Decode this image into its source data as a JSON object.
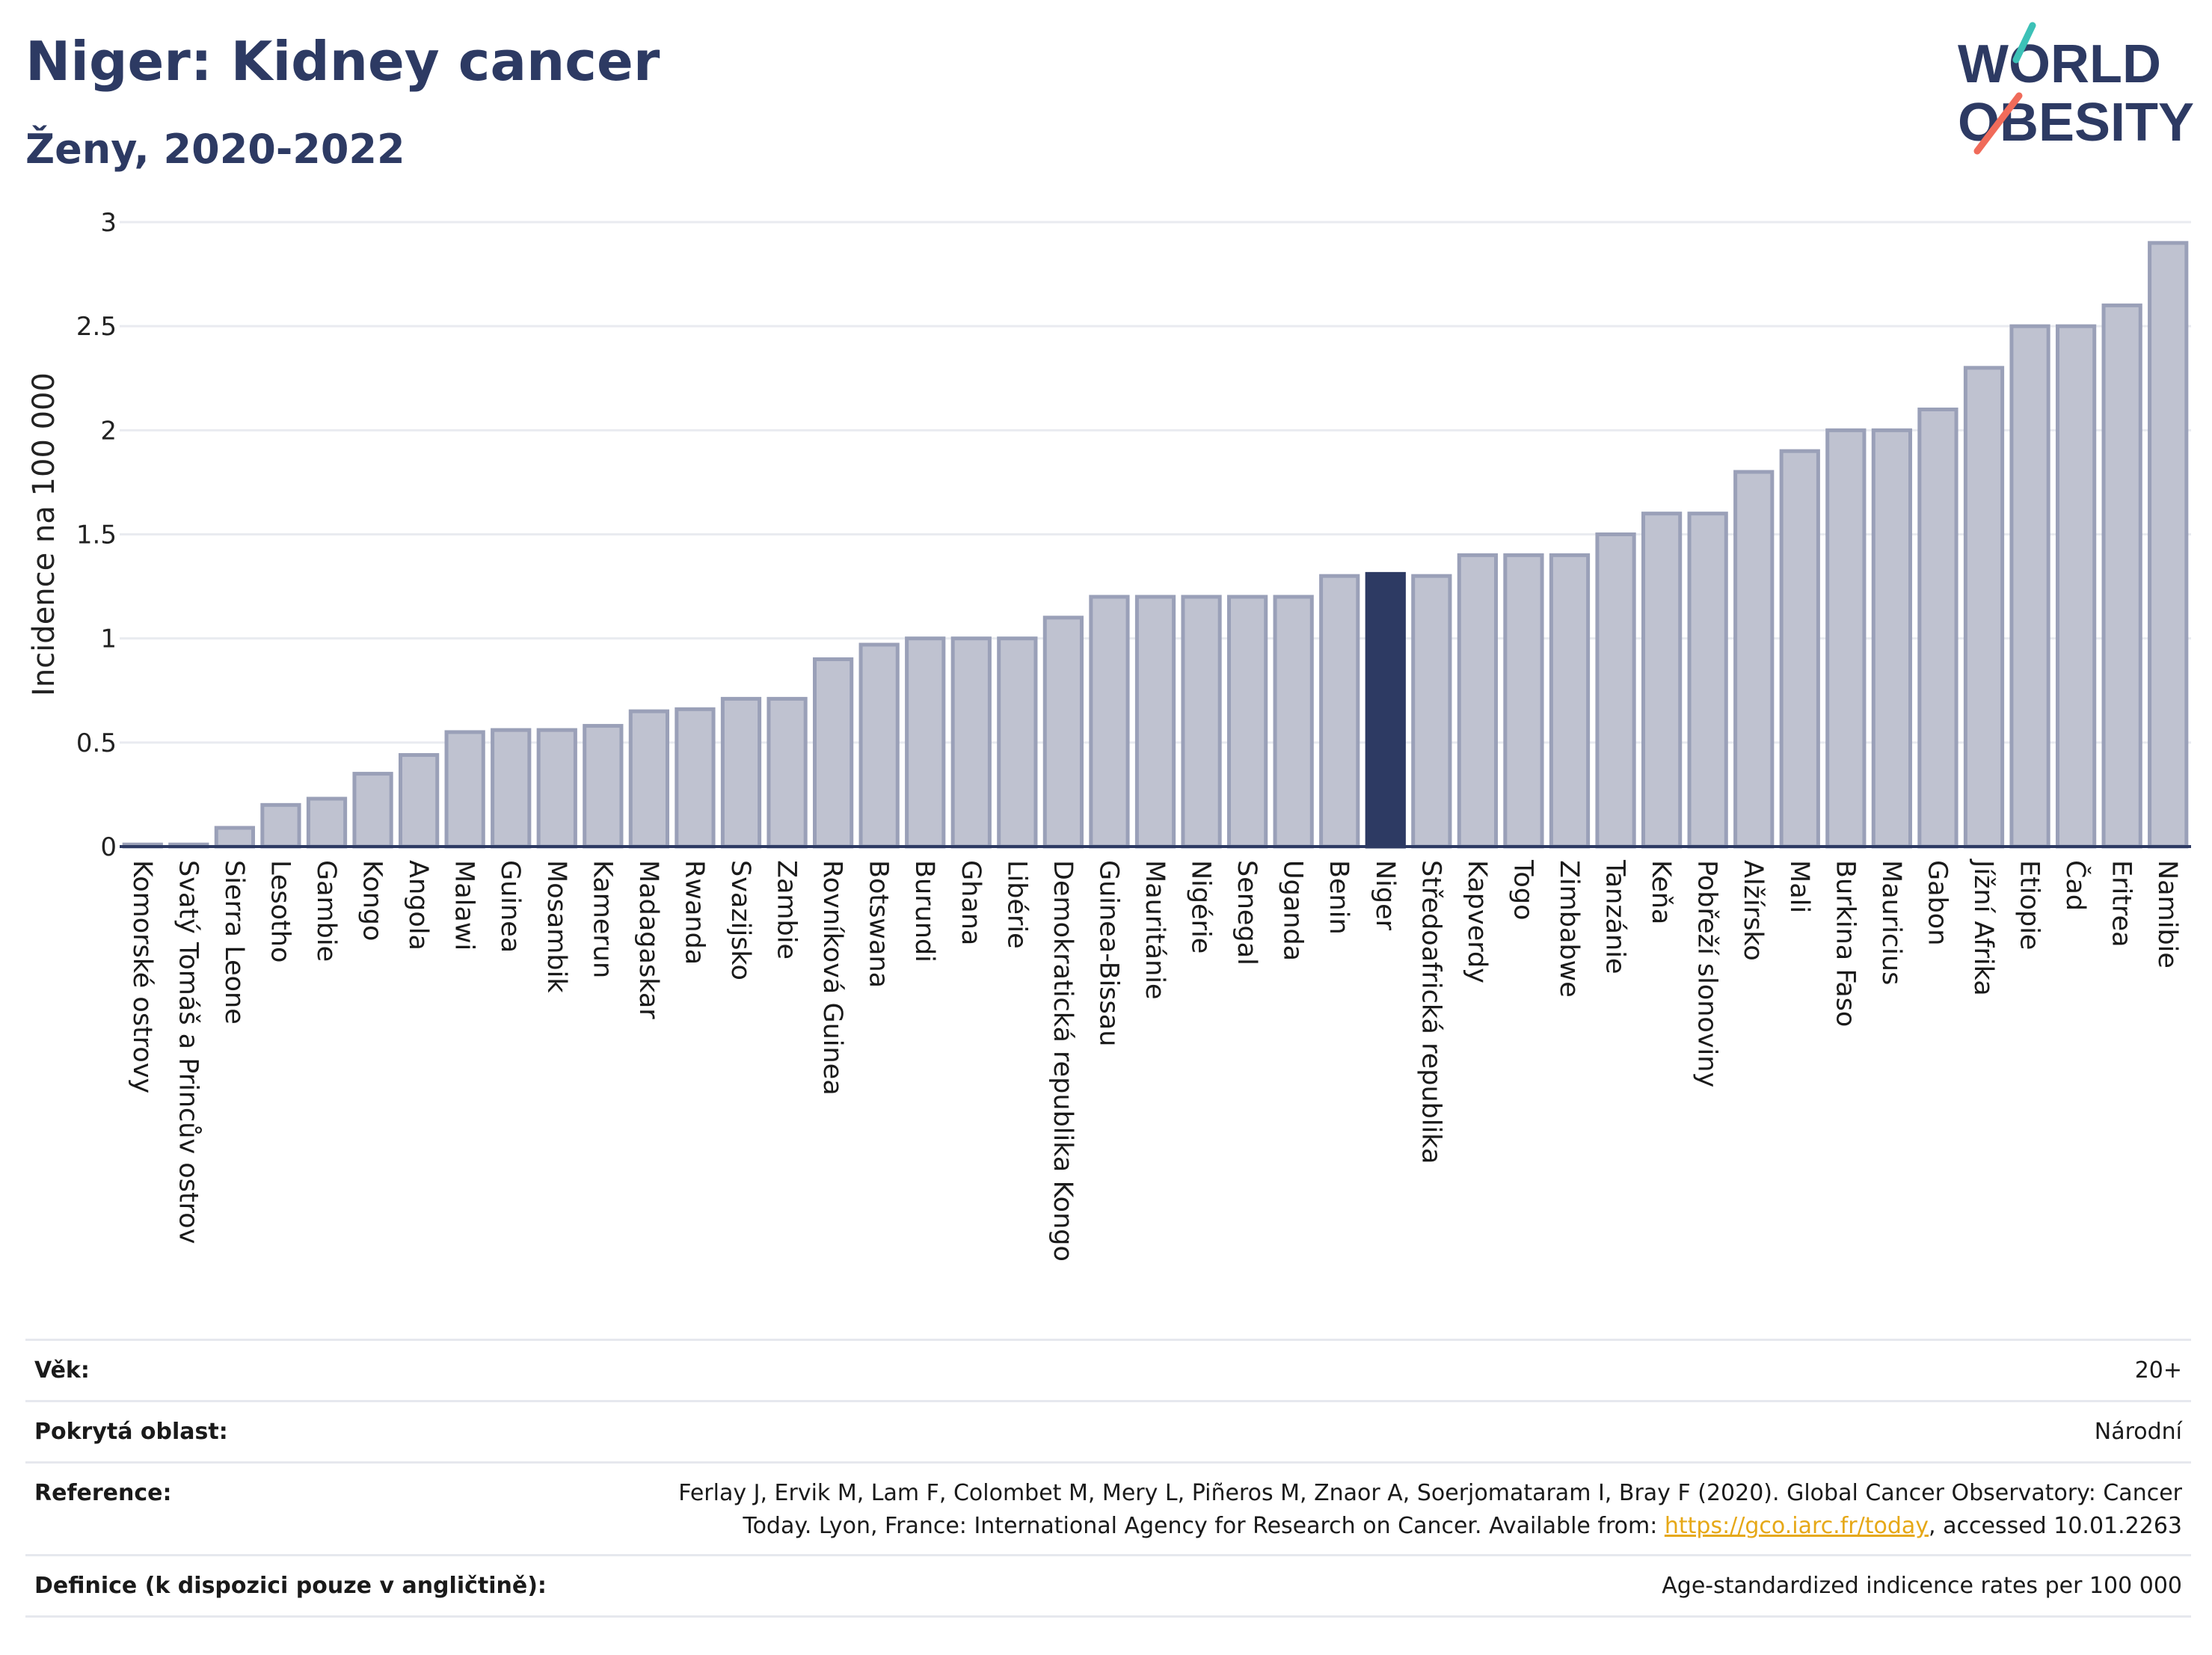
{
  "header": {
    "title": "Niger: Kidney cancer",
    "subtitle": "Ženy, 2020-2022"
  },
  "logo": {
    "line1": "WORLD",
    "line2": "OBESITY",
    "colors": {
      "text": "#2d3a63",
      "teal": "#3cc1b7",
      "coral": "#f06b5a"
    }
  },
  "chart_data": {
    "type": "bar",
    "ylabel": "Incidence na 100 000",
    "xlabel": "",
    "ylim": [
      0,
      3
    ],
    "yticks": [
      0,
      0.5,
      1,
      1.5,
      2,
      2.5,
      3
    ],
    "ytick_labels": [
      "0",
      "0.5",
      "1",
      "1.5",
      "2",
      "2.5",
      "3"
    ],
    "grid": true,
    "highlight": "Niger",
    "colors": {
      "bar": "#bfc2d0",
      "bar_edge": "#9aa0b8",
      "highlight": "#2d3a63"
    },
    "categories": [
      "Komorské ostrovy",
      "Svatý Tomáš a Princův ostrov",
      "Sierra Leone",
      "Lesotho",
      "Gambie",
      "Kongo",
      "Angola",
      "Malawi",
      "Guinea",
      "Mosambik",
      "Kamerun",
      "Madagaskar",
      "Rwanda",
      "Svazijsko",
      "Zambie",
      "Rovníková Guinea",
      "Botswana",
      "Burundi",
      "Ghana",
      "Libérie",
      "Demokratická republika Kongo",
      "Guinea-Bissau",
      "Mauritánie",
      "Nigérie",
      "Senegal",
      "Uganda",
      "Benin",
      "Niger",
      "Středoafrická republika",
      "Kapverdy",
      "Togo",
      "Zimbabwe",
      "Tanzánie",
      "Keňa",
      "Pobřeží slonoviny",
      "Alžírsko",
      "Mali",
      "Burkina Faso",
      "Mauricius",
      "Gabon",
      "Jížní Afrika",
      "Etiopie",
      "Čad",
      "Eritrea",
      "Namibie"
    ],
    "values": [
      0.01,
      0.01,
      0.09,
      0.2,
      0.23,
      0.35,
      0.44,
      0.55,
      0.56,
      0.56,
      0.58,
      0.65,
      0.66,
      0.71,
      0.71,
      0.9,
      0.97,
      1.0,
      1.0,
      1.0,
      1.1,
      1.2,
      1.2,
      1.2,
      1.2,
      1.2,
      1.3,
      1.31,
      1.3,
      1.4,
      1.4,
      1.4,
      1.5,
      1.6,
      1.6,
      1.8,
      1.9,
      2.0,
      2.0,
      2.1,
      2.3,
      2.5,
      2.5,
      2.6,
      2.9
    ]
  },
  "info": {
    "age": {
      "label": "Věk:",
      "value": "20+"
    },
    "area": {
      "label": "Pokrytá oblast:",
      "value": "Národní"
    },
    "reference": {
      "label": "Reference:",
      "line1": "Ferlay J, Ervik M, Lam F, Colombet M, Mery L, Piñeros M, Znaor A, Soerjomataram I, Bray F (2020). Global Cancer Observatory: Cancer",
      "line2_before": "Today. Lyon, France: International Agency for Research on Cancer. Available from: ",
      "link": "https://gco.iarc.fr/today",
      "line2_after": ", accessed 10.01.2263"
    },
    "definition": {
      "label": "Definice (k dispozici pouze v angličtině):",
      "value": "Age-standardized indicence rates per 100 000"
    }
  }
}
